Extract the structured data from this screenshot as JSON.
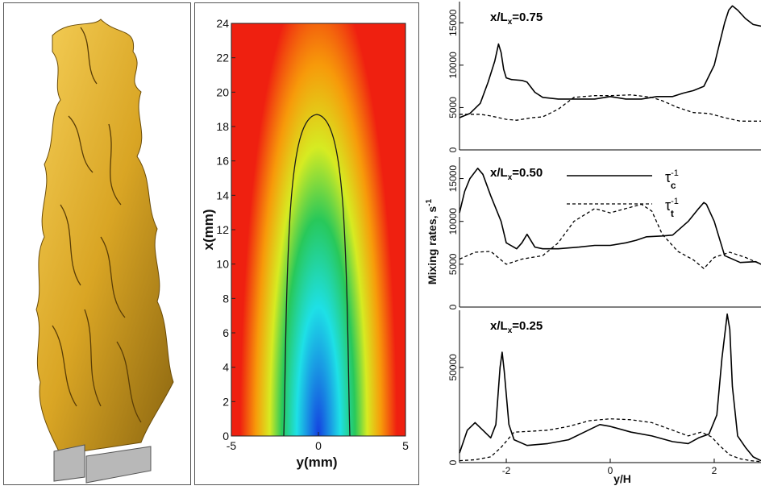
{
  "panel_b": {
    "x_ticks": [
      "-5",
      "0",
      "5"
    ],
    "y_ticks": [
      "0",
      "2",
      "4",
      "6",
      "8",
      "10",
      "12",
      "14",
      "16",
      "18",
      "20",
      "22",
      "24"
    ],
    "xlabel": "y(mm)",
    "ylabel": "x(mm)",
    "colors": {
      "outer": "#ef2010",
      "mid1": "#f79a0a",
      "mid2": "#d6eb22",
      "mid3": "#28c85a",
      "mid4": "#1ee0e6",
      "core": "#1440e0"
    }
  },
  "panel_c": {
    "ylabel": "Mixing rates, s",
    "ylabel_sup": "-1",
    "xlabel": "y/H",
    "x_ticks": [
      "-2",
      "0",
      "2"
    ],
    "legend": {
      "solid": {
        "base": "τ",
        "sup": "-1",
        "sub": "c"
      },
      "dashed": {
        "base": "τ",
        "sup": "-1",
        "sub": "t"
      }
    },
    "subplots": [
      {
        "prefix": "x/L",
        "sub": "x",
        "suffix": "=0.75",
        "y_ticks": [
          "0",
          "5000",
          "10000",
          "15000"
        ]
      },
      {
        "prefix": "x/L",
        "sub": "x",
        "suffix": "=0.50",
        "y_ticks": [
          "0",
          "5000",
          "10000",
          "15000"
        ]
      },
      {
        "prefix": "x/L",
        "sub": "x",
        "suffix": "=0.25",
        "y_ticks": [
          "0",
          "50000"
        ]
      }
    ]
  },
  "chart_data": [
    {
      "type": "line",
      "panel": "x/Lx=0.75",
      "xlabel": "y/H",
      "ylabel": "Mixing rates, s-1",
      "xlim": [
        -2.9,
        2.9
      ],
      "ylim": [
        0,
        17500
      ],
      "series": [
        {
          "style": "solid",
          "x": [
            -2.9,
            -2.7,
            -2.5,
            -2.35,
            -2.22,
            -2.15,
            -2.1,
            -2.05,
            -2.0,
            -1.9,
            -1.7,
            -1.6,
            -1.45,
            -1.3,
            -1.0,
            -0.6,
            -0.3,
            0.0,
            0.3,
            0.6,
            0.9,
            1.2,
            1.4,
            1.6,
            1.8,
            2.0,
            2.1,
            2.2,
            2.28,
            2.35,
            2.45,
            2.6,
            2.75,
            2.9
          ],
          "y": [
            3800,
            4300,
            5500,
            8000,
            10500,
            12500,
            11500,
            9500,
            8500,
            8300,
            8200,
            8000,
            6800,
            6200,
            6000,
            6000,
            6000,
            6300,
            6000,
            6000,
            6300,
            6300,
            6700,
            7000,
            7500,
            10000,
            12500,
            15000,
            16500,
            17000,
            16500,
            15500,
            14800,
            14600
          ]
        },
        {
          "style": "dashed",
          "x": [
            -2.9,
            -2.5,
            -2.3,
            -2.15,
            -2.0,
            -1.8,
            -1.5,
            -1.3,
            -1.0,
            -0.7,
            -0.3,
            0.0,
            0.4,
            0.8,
            1.0,
            1.3,
            1.6,
            1.9,
            2.2,
            2.5,
            2.9
          ],
          "y": [
            4200,
            4200,
            4000,
            3800,
            3600,
            3500,
            3800,
            3900,
            4800,
            6200,
            6400,
            6400,
            6500,
            6200,
            5800,
            5000,
            4400,
            4300,
            3800,
            3400,
            3400
          ]
        }
      ]
    },
    {
      "type": "line",
      "panel": "x/Lx=0.50",
      "xlabel": "y/H",
      "ylabel": "Mixing rates, s-1",
      "xlim": [
        -2.9,
        2.9
      ],
      "ylim": [
        0,
        17500
      ],
      "series": [
        {
          "name": "τc⁻¹",
          "style": "solid",
          "x": [
            -2.9,
            -2.8,
            -2.7,
            -2.55,
            -2.45,
            -2.3,
            -2.1,
            -2.0,
            -1.8,
            -1.7,
            -1.6,
            -1.45,
            -1.3,
            -1.0,
            -0.6,
            -0.3,
            0.0,
            0.3,
            0.5,
            0.7,
            1.0,
            1.2,
            1.5,
            1.7,
            1.8,
            1.85,
            2.0,
            2.2,
            2.5,
            2.8,
            2.9
          ],
          "y": [
            11000,
            13500,
            15000,
            16200,
            15500,
            13000,
            10000,
            7500,
            6800,
            7500,
            8500,
            7000,
            6800,
            6800,
            7000,
            7200,
            7200,
            7500,
            7800,
            8200,
            8300,
            8400,
            10000,
            11500,
            12200,
            12000,
            10000,
            6000,
            5200,
            5300,
            5000
          ]
        },
        {
          "name": "τt⁻¹",
          "style": "dashed",
          "x": [
            -2.9,
            -2.6,
            -2.3,
            -2.0,
            -1.7,
            -1.3,
            -1.0,
            -0.7,
            -0.3,
            0.0,
            0.3,
            0.6,
            0.8,
            1.0,
            1.3,
            1.6,
            1.8,
            2.0,
            2.3,
            2.6,
            2.9
          ],
          "y": [
            5600,
            6400,
            6500,
            5000,
            5600,
            6000,
            7500,
            10000,
            11500,
            11000,
            11500,
            12000,
            11200,
            8500,
            6500,
            5500,
            4500,
            5800,
            6400,
            5800,
            5000
          ]
        }
      ]
    },
    {
      "type": "line",
      "panel": "x/Lx=0.25",
      "xlabel": "y/H",
      "ylabel": "Mixing rates, s-1",
      "xlim": [
        -2.9,
        2.9
      ],
      "ylim": [
        0,
        80000
      ],
      "series": [
        {
          "style": "solid",
          "x": [
            -2.9,
            -2.75,
            -2.6,
            -2.45,
            -2.3,
            -2.2,
            -2.12,
            -2.08,
            -2.04,
            -1.95,
            -1.85,
            -1.6,
            -1.2,
            -0.8,
            -0.5,
            -0.2,
            0.0,
            0.4,
            0.8,
            1.2,
            1.5,
            1.7,
            1.9,
            2.05,
            2.15,
            2.25,
            2.3,
            2.35,
            2.45,
            2.6,
            2.75,
            2.9
          ],
          "y": [
            5000,
            17000,
            21000,
            17000,
            13000,
            20000,
            50000,
            58000,
            48000,
            20000,
            12000,
            9000,
            10000,
            12000,
            16000,
            20000,
            19000,
            16000,
            14000,
            11000,
            10000,
            13000,
            15000,
            25000,
            55000,
            78000,
            70000,
            40000,
            14000,
            8000,
            3000,
            1000
          ]
        },
        {
          "style": "dashed",
          "x": [
            -2.9,
            -2.6,
            -2.3,
            -2.1,
            -1.85,
            -1.5,
            -1.2,
            -0.8,
            -0.4,
            0.0,
            0.4,
            0.8,
            1.2,
            1.5,
            1.75,
            1.95,
            2.1,
            2.3,
            2.5,
            2.7,
            2.9
          ],
          "y": [
            1000,
            1500,
            3000,
            8000,
            16000,
            16500,
            17000,
            19000,
            22000,
            23000,
            22500,
            21000,
            17000,
            14000,
            16000,
            13500,
            9000,
            4000,
            2000,
            1000,
            500
          ]
        }
      ]
    }
  ]
}
